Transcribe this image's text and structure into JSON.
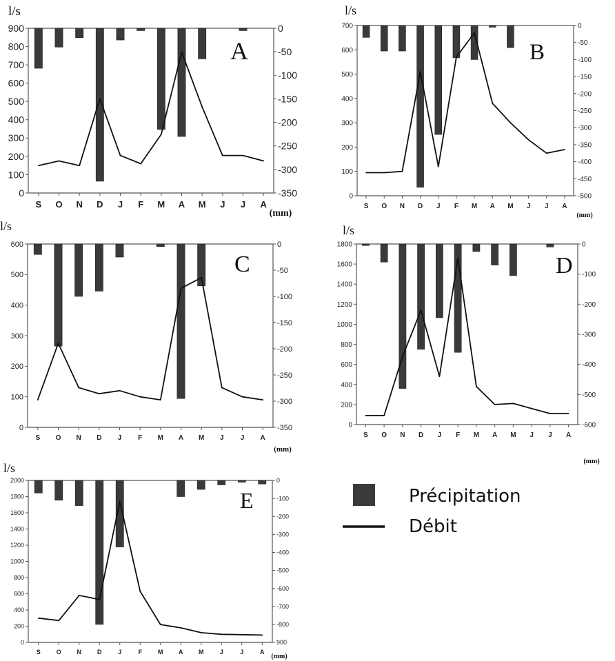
{
  "legend": {
    "bar_label": "Précipitation",
    "line_label": "Débit",
    "bar_color": "#3a3a3a",
    "line_color": "#111111"
  },
  "chart_data": [
    {
      "type": "bar+line",
      "panel_letter": "A",
      "left_unit": "l/s",
      "right_unit": "(mm)",
      "categories": [
        "S",
        "O",
        "N",
        "D",
        "J",
        "F",
        "M",
        "A",
        "M",
        "J",
        "J",
        "A"
      ],
      "left_ticks": [
        0,
        100,
        200,
        300,
        400,
        500,
        600,
        700,
        800,
        900
      ],
      "right_ticks": [
        0,
        -50,
        -100,
        -150,
        -200,
        -250,
        -300,
        -350
      ],
      "left_ylim": [
        0,
        900
      ],
      "right_ylim": [
        -350,
        0
      ],
      "series": [
        {
          "name": "Débit",
          "kind": "line",
          "axis": "left",
          "values": [
            150,
            175,
            150,
            515,
            205,
            160,
            320,
            770,
            470,
            205,
            205,
            175
          ]
        },
        {
          "name": "Précipitation",
          "kind": "bar",
          "axis": "right",
          "values": [
            -85,
            -40,
            -20,
            -325,
            -25,
            -5,
            -215,
            -230,
            -65,
            0,
            -5,
            0
          ]
        }
      ]
    },
    {
      "type": "bar+line",
      "panel_letter": "B",
      "left_unit": "l/s",
      "right_unit": "(mm)",
      "categories": [
        "S",
        "O",
        "N",
        "D",
        "J",
        "F",
        "M",
        "A",
        "M",
        "J",
        "J",
        "A"
      ],
      "left_ticks": [
        0,
        100,
        200,
        300,
        400,
        500,
        600,
        700
      ],
      "right_ticks": [
        0,
        -50,
        -100,
        -150,
        -200,
        -250,
        -300,
        -350,
        -400,
        -450,
        -500
      ],
      "left_ylim": [
        0,
        700
      ],
      "right_ylim": [
        -500,
        0
      ],
      "series": [
        {
          "name": "Débit",
          "kind": "line",
          "axis": "left",
          "values": [
            95,
            95,
            100,
            510,
            120,
            570,
            670,
            380,
            300,
            230,
            175,
            190
          ]
        },
        {
          "name": "Précipitation",
          "kind": "bar",
          "axis": "right",
          "values": [
            -35,
            -75,
            -75,
            -475,
            -320,
            -95,
            -100,
            -5,
            -65,
            0,
            0,
            0
          ]
        }
      ]
    },
    {
      "type": "bar+line",
      "panel_letter": "C",
      "left_unit": "l/s",
      "right_unit": "(mm)",
      "categories": [
        "S",
        "O",
        "N",
        "D",
        "J",
        "F",
        "M",
        "A",
        "M",
        "J",
        "J",
        "A"
      ],
      "left_ticks": [
        0,
        100,
        200,
        300,
        400,
        500,
        600
      ],
      "right_ticks": [
        0,
        -50,
        -100,
        -150,
        -200,
        -250,
        -300,
        -350
      ],
      "left_ylim": [
        0,
        600
      ],
      "right_ylim": [
        -350,
        0
      ],
      "series": [
        {
          "name": "Débit",
          "kind": "line",
          "axis": "left",
          "values": [
            90,
            275,
            130,
            110,
            120,
            100,
            90,
            455,
            490,
            130,
            100,
            90
          ]
        },
        {
          "name": "Précipitation",
          "kind": "bar",
          "axis": "right",
          "values": [
            -20,
            -195,
            -100,
            -90,
            -25,
            0,
            -5,
            -295,
            -80,
            0,
            0,
            0
          ]
        }
      ]
    },
    {
      "type": "bar+line",
      "panel_letter": "D",
      "left_unit": "l/s",
      "right_unit": "(mm)",
      "categories": [
        "S",
        "O",
        "N",
        "D",
        "J",
        "F",
        "M",
        "A",
        "M",
        "J",
        "J",
        "A"
      ],
      "left_ticks": [
        0,
        200,
        400,
        600,
        800,
        1000,
        1200,
        1400,
        1600,
        1800
      ],
      "right_ticks": [
        0,
        -100,
        -200,
        -300,
        -400,
        -500,
        -600
      ],
      "left_ylim": [
        0,
        1800
      ],
      "right_ylim": [
        -600,
        0
      ],
      "series": [
        {
          "name": "Débit",
          "kind": "line",
          "axis": "left",
          "values": [
            90,
            90,
            680,
            1140,
            480,
            1660,
            380,
            200,
            210,
            160,
            110,
            110
          ]
        },
        {
          "name": "Précipitation",
          "kind": "bar",
          "axis": "right",
          "values": [
            -5,
            -60,
            -480,
            -350,
            -245,
            -360,
            -25,
            -70,
            -105,
            0,
            -10,
            0
          ]
        }
      ]
    },
    {
      "type": "bar+line",
      "panel_letter": "E",
      "left_unit": "l/s",
      "right_unit": "(mm)",
      "categories": [
        "S",
        "O",
        "N",
        "D",
        "J",
        "F",
        "M",
        "A",
        "M",
        "J",
        "J",
        "A"
      ],
      "left_ticks": [
        0,
        200,
        400,
        600,
        800,
        1000,
        1200,
        1400,
        1600,
        1800,
        2000
      ],
      "right_ticks": [
        0,
        -100,
        -200,
        -300,
        -400,
        -500,
        -600,
        -700,
        -800,
        900
      ],
      "left_ylim": [
        0,
        2000
      ],
      "right_ylim": [
        -900,
        0
      ],
      "series": [
        {
          "name": "Débit",
          "kind": "line",
          "axis": "left",
          "values": [
            300,
            270,
            580,
            530,
            1740,
            630,
            220,
            180,
            120,
            100,
            95,
            90
          ]
        },
        {
          "name": "Précipitation",
          "kind": "bar",
          "axis": "right",
          "values": [
            -70,
            -110,
            -140,
            -800,
            -370,
            0,
            0,
            -90,
            -50,
            -25,
            -10,
            -20
          ]
        }
      ]
    }
  ]
}
